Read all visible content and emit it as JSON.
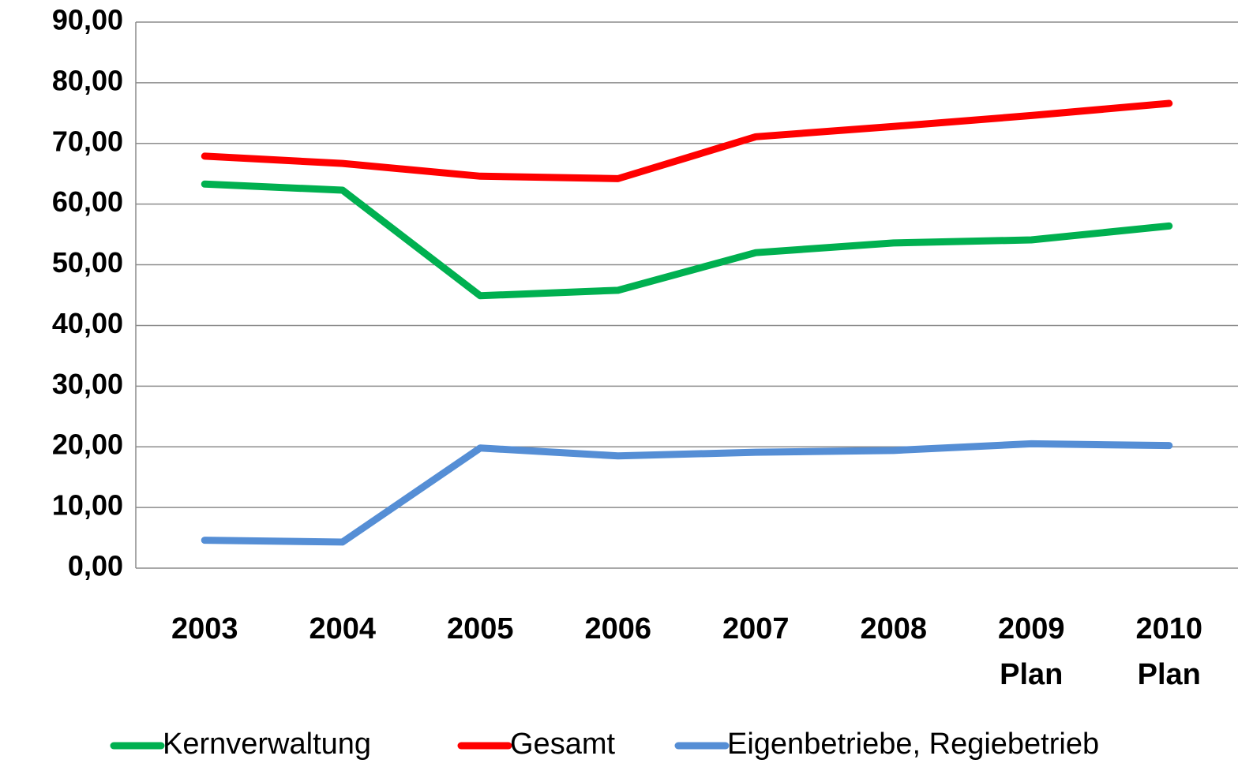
{
  "chart_data": {
    "type": "line",
    "categories": [
      "2003",
      "2004",
      "2005",
      "2006",
      "2007",
      "2008",
      "2009\nPlan",
      "2010\nPlan"
    ],
    "series": [
      {
        "name": "Kernverwaltung",
        "color": "#00b050",
        "values": [
          63.3,
          62.3,
          44.9,
          45.8,
          52.0,
          53.6,
          54.1,
          56.4
        ]
      },
      {
        "name": "Gesamt",
        "color": "#ff0000",
        "values": [
          67.9,
          66.7,
          64.6,
          64.2,
          71.1,
          72.8,
          74.6,
          76.6
        ]
      },
      {
        "name": "Eigenbetriebe, Regiebetrieb",
        "color": "#558ed5",
        "values": [
          4.6,
          4.3,
          19.8,
          18.5,
          19.1,
          19.4,
          20.5,
          20.2
        ]
      }
    ],
    "ylim": [
      0,
      90
    ],
    "yticks": [
      {
        "value": 0,
        "label": "0,00"
      },
      {
        "value": 10,
        "label": "10,00"
      },
      {
        "value": 20,
        "label": "20,00"
      },
      {
        "value": 30,
        "label": "30,00"
      },
      {
        "value": 40,
        "label": "40,00"
      },
      {
        "value": 50,
        "label": "50,00"
      },
      {
        "value": 60,
        "label": "60,00"
      },
      {
        "value": 70,
        "label": "70,00"
      },
      {
        "value": 80,
        "label": "80,00"
      },
      {
        "value": 90,
        "label": "90,00"
      }
    ],
    "grid": true,
    "legend": "bottom"
  }
}
